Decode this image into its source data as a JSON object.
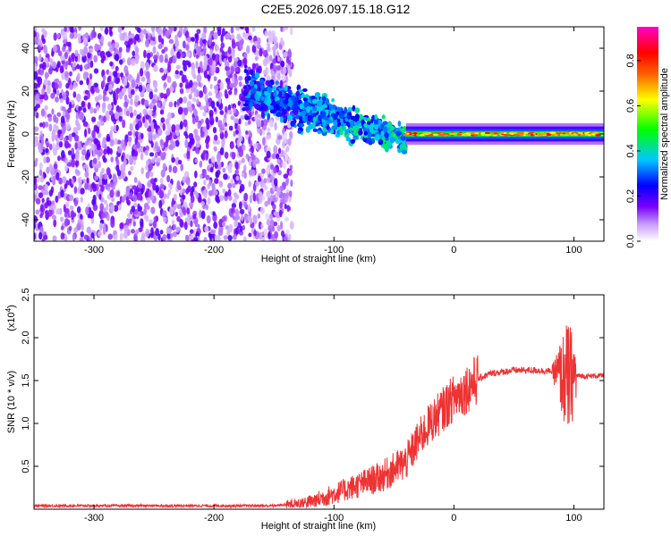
{
  "title": "C2E5.2026.097.15.18.G12",
  "chart_data": [
    {
      "type": "heatmap",
      "xlabel": "Height of straight line (km)",
      "ylabel": "Frequency (Hz)",
      "xlim": [
        -350,
        125
      ],
      "ylim": [
        -50,
        50
      ],
      "xticks": [
        -300,
        -200,
        -100,
        0,
        100
      ],
      "yticks": [
        -40,
        -20,
        0,
        20,
        40
      ],
      "colorbar": {
        "label": "Normalized spectral amplitude",
        "range": [
          0,
          0.95
        ],
        "ticks": [
          "0.0",
          "0.2",
          "0.4",
          "0.6",
          "0.8"
        ],
        "tick_values": [
          0,
          0.2,
          0.4,
          0.6,
          0.8
        ],
        "colormap": [
          "#ffffff",
          "#7a00ff",
          "#0000ff",
          "#00c8ff",
          "#00ff00",
          "#ffff00",
          "#ff6000",
          "#ff0000",
          "#ff00c8"
        ]
      },
      "regions": [
        {
          "x_range": [
            -350,
            -145
          ],
          "description": "scattered noise, purple, full band",
          "amplitude": 0.1
        },
        {
          "x_range": [
            -175,
            -40
          ],
          "freq_center_start": 20,
          "freq_center_end": -3,
          "amplitude": 0.35
        },
        {
          "x_range": [
            -40,
            125
          ],
          "freq_center": 0,
          "amplitude": 0.85
        }
      ]
    },
    {
      "type": "line",
      "xlabel": "Height of straight line (km)",
      "ylabel": "SNR (10 * v/v)",
      "y_multiplier": "(x10",
      "y_multiplier_exp": "4",
      "y_multiplier_close": ")",
      "xlim": [
        -350,
        125
      ],
      "ylim": [
        0,
        2.5
      ],
      "xticks": [
        -300,
        -200,
        -100,
        0,
        100
      ],
      "yticks": [
        0.5,
        1.0,
        1.5,
        2.0,
        2.5
      ],
      "ytick_labels": [
        "0.5",
        "1.0",
        "1.5",
        "2.0",
        "2.5"
      ],
      "series": [
        {
          "color": "#ee3333",
          "x": [
            -350,
            -150,
            -120,
            -100,
            -80,
            -60,
            -40,
            -30,
            -20,
            -10,
            0,
            10,
            20,
            30,
            50,
            70,
            85,
            95,
            100,
            110,
            125
          ],
          "y": [
            0.04,
            0.04,
            0.08,
            0.18,
            0.28,
            0.38,
            0.55,
            0.8,
            1.0,
            1.15,
            1.3,
            1.4,
            1.52,
            1.58,
            1.62,
            1.62,
            1.6,
            1.5,
            1.56,
            1.55,
            1.56
          ]
        }
      ]
    }
  ]
}
